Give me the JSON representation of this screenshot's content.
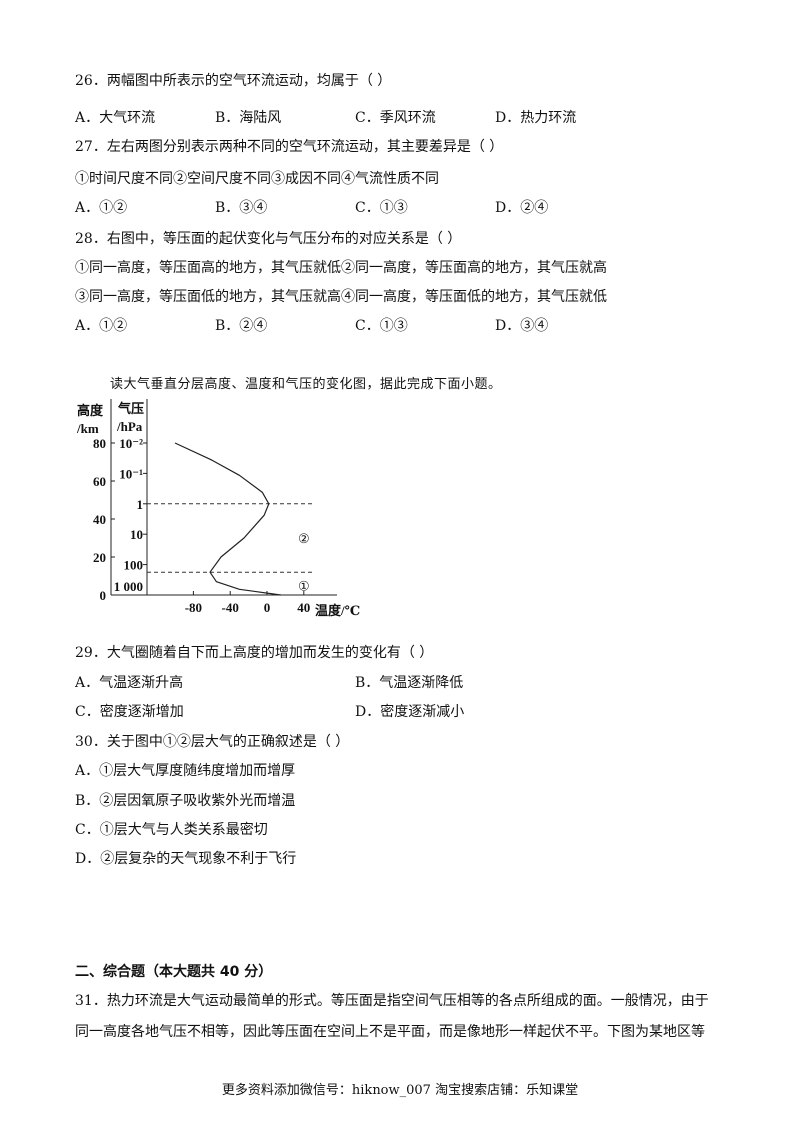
{
  "q26": {
    "stem": "26．两幅图中所表示的空气环流运动，均属于（    ）",
    "options": [
      "A．大气环流",
      "B．海陆风",
      "C．季风环流",
      "D．热力环流"
    ]
  },
  "q27": {
    "stem": "27．左右两图分别表示两种不同的空气环流运动，其主要差异是（    ）",
    "items": "①时间尺度不同②空间尺度不同③成因不同④气流性质不同",
    "options": [
      "A．①②",
      "B．③④",
      "C．①③",
      "D．②④"
    ]
  },
  "q28": {
    "stem": "28．右图中，等压面的起伏变化与气压分布的对应关系是（    ）",
    "items1": "①同一高度，等压面高的地方，其气压就低②同一高度，等压面高的地方，其气压就高",
    "items2": "③同一高度，等压面低的地方，其气压就高④同一高度，等压面低的地方，其气压就低",
    "options": [
      "A．①②",
      "B．②④",
      "C．①③",
      "D．③④"
    ]
  },
  "intro": "读大气垂直分层高度、温度和气压的变化图，据此完成下面小题。",
  "chart_data": {
    "type": "line",
    "ylabel": "高度/km",
    "ylabel_lines": [
      "高度",
      "/km"
    ],
    "y2label_lines": [
      "气压",
      "/hPa"
    ],
    "xlabel": "温度/℃",
    "xticks": [
      "-80",
      "-40",
      "0",
      "40"
    ],
    "yticks": [
      "0",
      "20",
      "40",
      "60",
      "80"
    ],
    "y2ticks": [
      "1 000",
      "100",
      "10",
      "1",
      "10⁻¹",
      "10⁻²"
    ],
    "y2tick_heights_km": [
      0,
      16,
      32,
      48,
      64,
      80
    ],
    "ylim": [
      0,
      82
    ],
    "xlim": [
      -130,
      50
    ],
    "series": [
      {
        "x": [
          15,
          0,
          -30,
          -55,
          -62,
          -50,
          -25,
          -3,
          2,
          -5,
          -30,
          -60,
          -100
        ],
        "y": [
          0,
          1,
          3,
          7,
          12,
          20,
          30,
          42,
          48,
          54,
          63,
          71,
          80
        ]
      }
    ],
    "boundaries_km": [
      12,
      48
    ],
    "layer_labels": [
      {
        "text": "①",
        "x": 40,
        "y": 5
      },
      {
        "text": "②",
        "x": 40,
        "y": 30
      }
    ]
  },
  "q29": {
    "stem": "29．大气圈随着自下而上高度的增加而发生的变化有（    ）",
    "options": [
      "A．气温逐渐升高",
      "B．气温逐渐降低",
      "C．密度逐渐增加",
      "D．密度逐渐减小"
    ]
  },
  "q30": {
    "stem": "30．关于图中①②层大气的正确叙述是（    ）",
    "options": [
      "A．①层大气厚度随纬度增加而增厚",
      "B．②层因氧原子吸收紫外光而增温",
      "C．①层大气与人类关系最密切",
      "D．②层复杂的天气现象不利于飞行"
    ]
  },
  "section2": "二、综合题（本大题共 40 分）",
  "q31": {
    "line1": "31．热力环流是大气运动最简单的形式。等压面是指空间气压相等的各点所组成的面。一般情况，由于",
    "line2": "同一高度各地气压不相等，因此等压面在空间上不是平面，而是像地形一样起伏不平。下图为某地区等"
  },
  "footer": "更多资料添加微信号：hiknow_007    淘宝搜索店铺：乐知课堂"
}
